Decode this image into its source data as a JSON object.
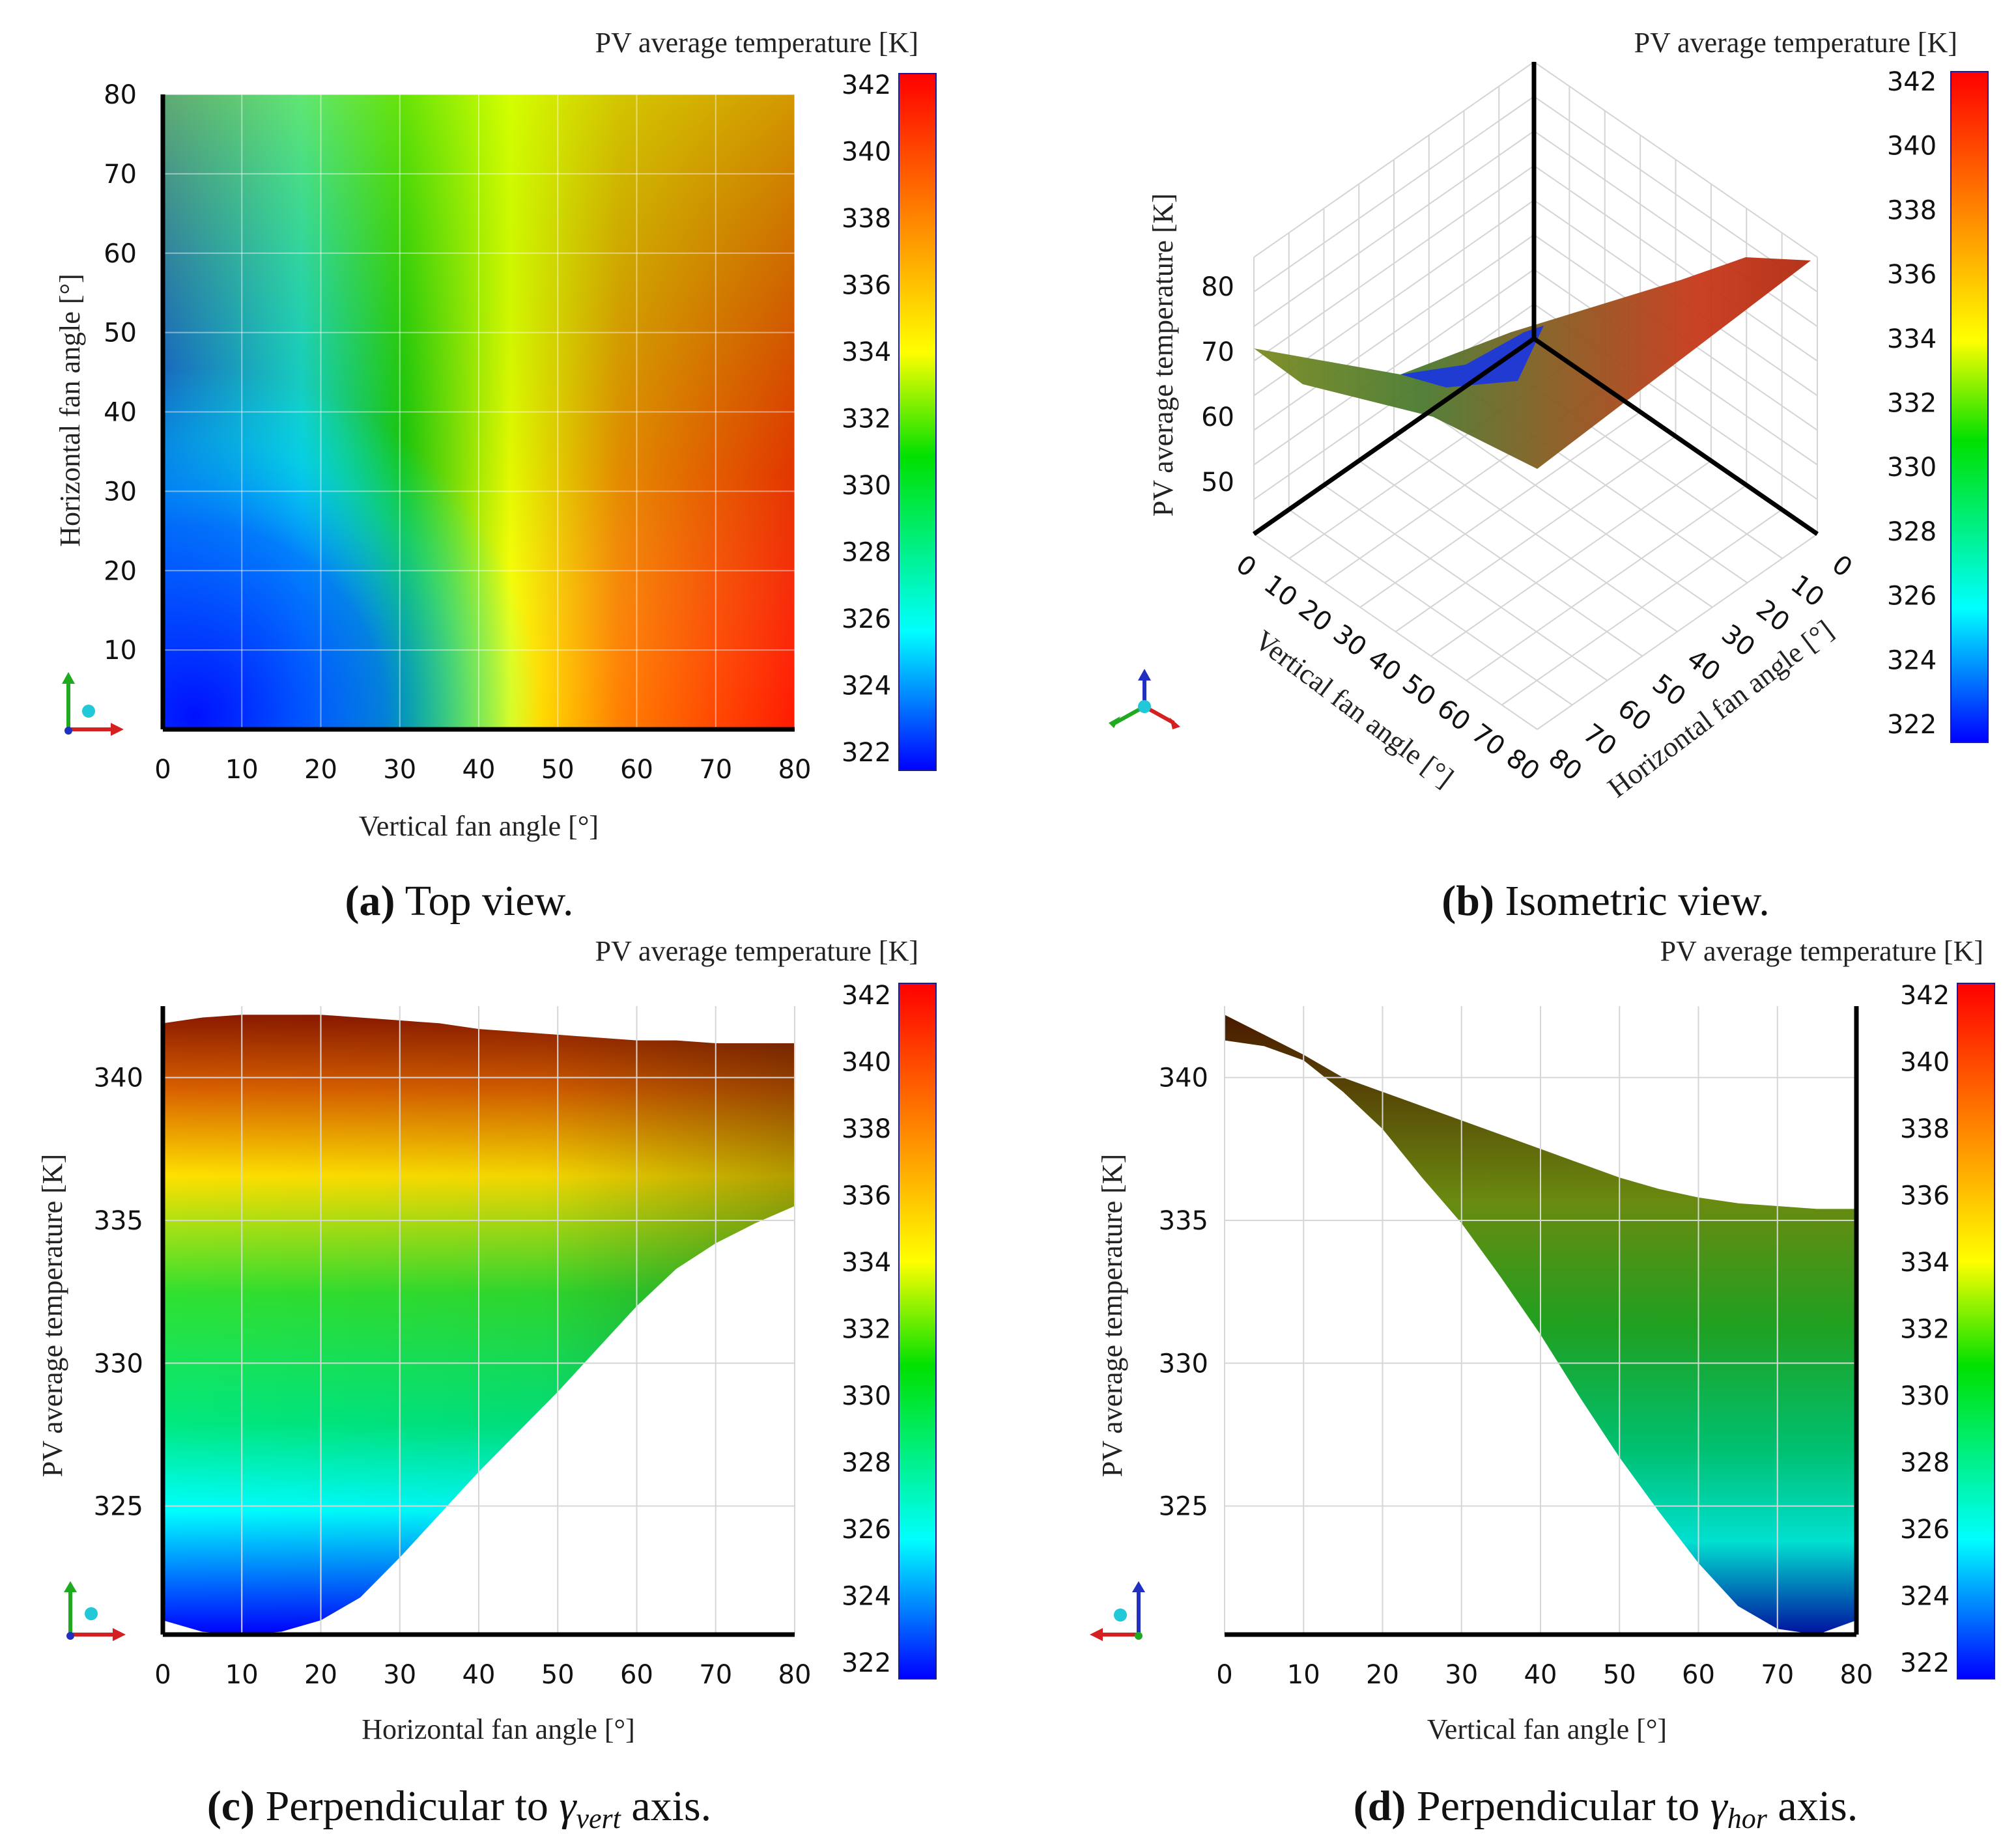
{
  "colorbar": {
    "title": "PV average temperature [K]",
    "ticks": [
      "342",
      "340",
      "338",
      "336",
      "334",
      "332",
      "330",
      "328",
      "326",
      "324",
      "322"
    ],
    "stops": [
      "#ff0000",
      "#ff8000",
      "#ffff00",
      "#00e000",
      "#00ffff",
      "#0000ff"
    ]
  },
  "captions": {
    "a": {
      "letter": "(a)",
      "text": " Top view."
    },
    "b": {
      "letter": "(b)",
      "text": " Isometric view."
    },
    "c": {
      "letter": "(c)",
      "text": " Perpendicular to ",
      "sym": "γ",
      "sub": "vert",
      "after": " axis."
    },
    "d": {
      "letter": "(d)",
      "text": " Perpendicular to ",
      "sym": "γ",
      "sub": "hor",
      "after": " axis."
    }
  },
  "chart_data": [
    {
      "id": "a",
      "type": "heatmap",
      "title": "Top view.",
      "xlabel": "Vertical fan angle [°]",
      "ylabel": "Horizontal fan angle [°]",
      "xlim": [
        0,
        80
      ],
      "ylim": [
        0,
        80
      ],
      "xticks": [
        "0",
        "10",
        "20",
        "30",
        "40",
        "50",
        "60",
        "70",
        "80"
      ],
      "yticks": [
        "10",
        "20",
        "30",
        "40",
        "50",
        "60",
        "70",
        "80"
      ],
      "colorbar_label": "PV average temperature [K]",
      "zlim": [
        322,
        342
      ],
      "grid": true
    },
    {
      "id": "b",
      "type": "surface3d",
      "title": "Isometric view.",
      "xlabel": "Vertical fan angle [°]",
      "ylabel": "Horizontal fan angle [°]",
      "zlabel": "PV average temperature [K]",
      "xticks": [
        "0",
        "10",
        "20",
        "30",
        "40",
        "50",
        "60",
        "70",
        "80"
      ],
      "yticks": [
        "0",
        "10",
        "20",
        "30",
        "40",
        "50",
        "60",
        "70",
        "80"
      ],
      "zticks": [
        "50",
        "60",
        "70",
        "80"
      ],
      "colorbar_label": "PV average temperature [K]",
      "zlim": [
        322,
        342
      ]
    },
    {
      "id": "c",
      "type": "area",
      "title": "Perpendicular to γvert axis.",
      "xlabel": "Horizontal fan angle [°]",
      "ylabel": "PV average temperature [K]",
      "xlim": [
        0,
        80
      ],
      "ylim": [
        320.5,
        342.5
      ],
      "xticks": [
        "0",
        "10",
        "20",
        "30",
        "40",
        "50",
        "60",
        "70",
        "80"
      ],
      "yticks": [
        "325",
        "330",
        "335",
        "340"
      ],
      "x": [
        0,
        5,
        10,
        15,
        20,
        25,
        30,
        35,
        40,
        45,
        50,
        55,
        60,
        65,
        70,
        75,
        80
      ],
      "upper": [
        341.9,
        342.1,
        342.2,
        342.2,
        342.2,
        342.1,
        342.0,
        341.9,
        341.7,
        341.6,
        341.5,
        341.4,
        341.3,
        341.3,
        341.2,
        341.2,
        341.2
      ],
      "lower": [
        321.0,
        320.6,
        320.5,
        320.6,
        321.0,
        321.8,
        323.2,
        324.7,
        326.2,
        327.6,
        329.0,
        330.5,
        332.0,
        333.3,
        334.2,
        334.9,
        335.5
      ],
      "colorbar_label": "PV average temperature [K]",
      "zlim": [
        322,
        342
      ]
    },
    {
      "id": "d",
      "type": "area",
      "title": "Perpendicular to γhor axis.",
      "xlabel": "Vertical fan angle [°]",
      "ylabel": "PV average temperature [K]",
      "xlim": [
        0,
        80
      ],
      "ylim": [
        320.5,
        342.5
      ],
      "xticks": [
        "0",
        "10",
        "20",
        "30",
        "40",
        "50",
        "60",
        "70",
        "80"
      ],
      "yticks": [
        "325",
        "330",
        "335",
        "340"
      ],
      "x": [
        0,
        5,
        10,
        15,
        20,
        25,
        30,
        35,
        40,
        45,
        50,
        55,
        60,
        65,
        70,
        75,
        80
      ],
      "upper": [
        342.2,
        341.5,
        340.8,
        340.0,
        339.5,
        339.0,
        338.5,
        338.0,
        337.5,
        337.0,
        336.5,
        336.1,
        335.8,
        335.6,
        335.5,
        335.4,
        335.4
      ],
      "lower": [
        341.3,
        341.1,
        340.6,
        339.5,
        338.2,
        336.5,
        334.9,
        333.0,
        331.0,
        328.8,
        326.7,
        324.8,
        323.0,
        321.5,
        320.7,
        320.5,
        321.0
      ],
      "colorbar_label": "PV average temperature [K]",
      "zlim": [
        322,
        342
      ]
    }
  ]
}
